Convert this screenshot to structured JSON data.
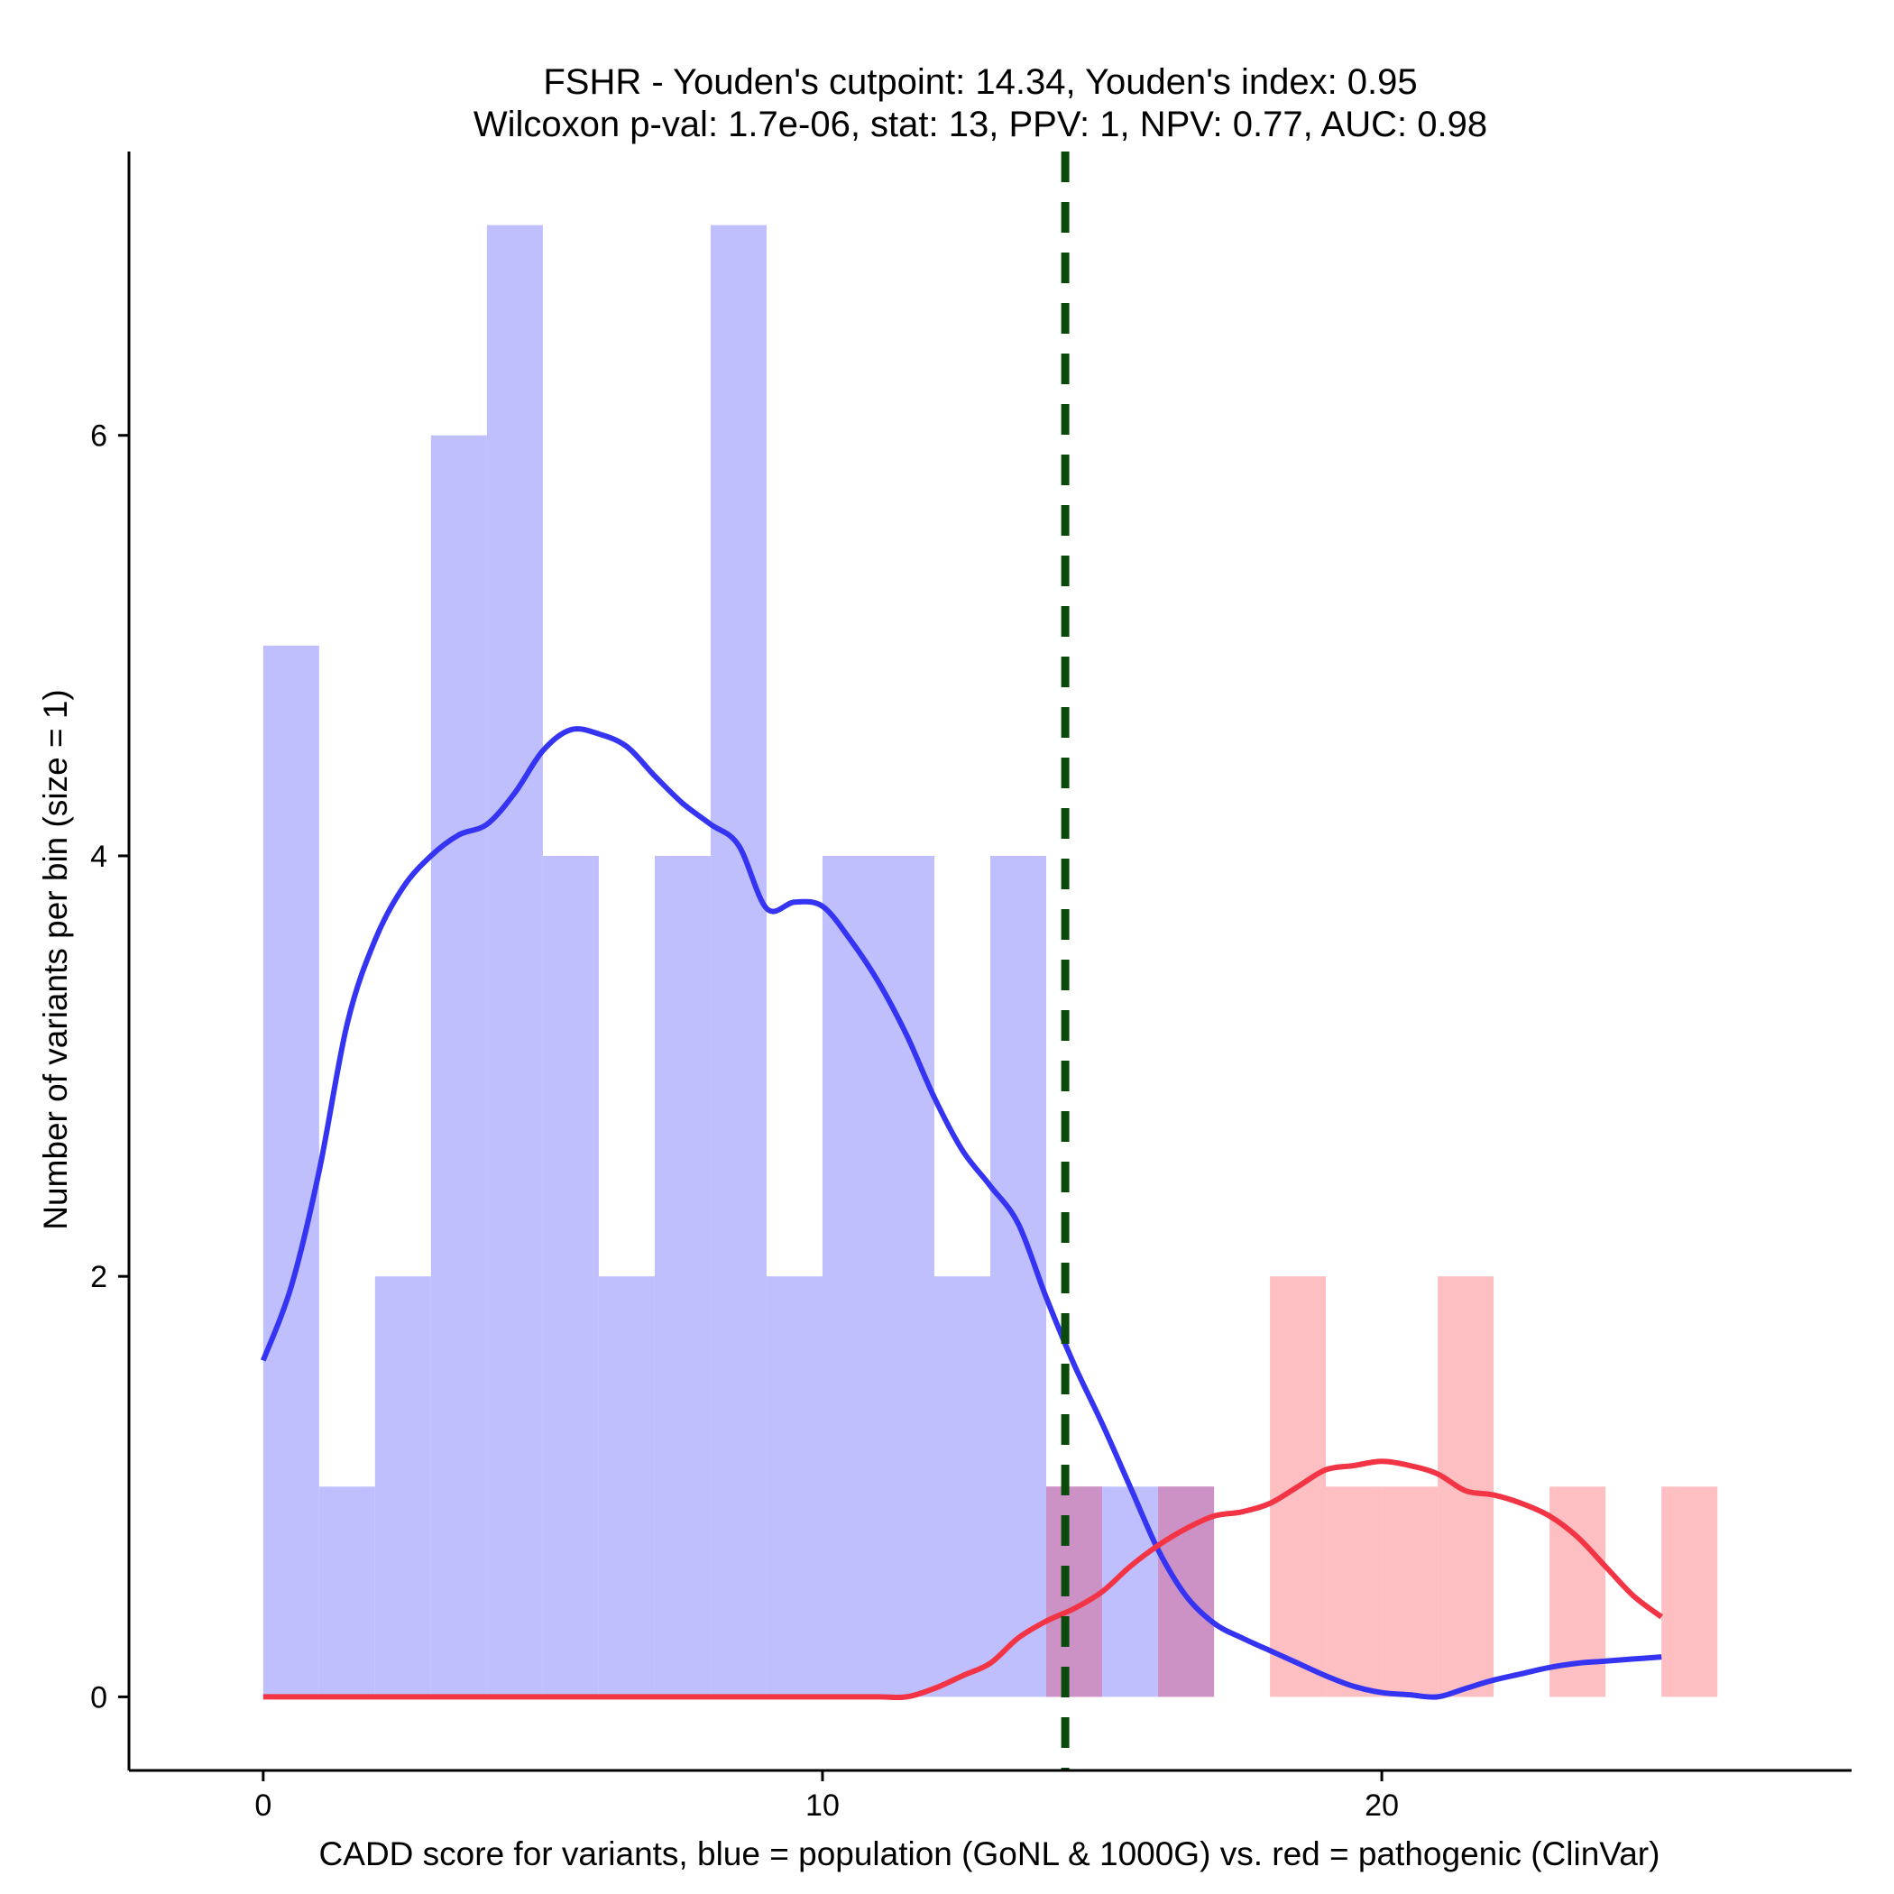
{
  "chart_data": {
    "type": "histogram",
    "title_lines": [
      "FSHR - Youden's cutpoint: 14.34, Youden's index: 0.95",
      "Wilcoxon p-val: 1.7e-06, stat: 13, PPV: 1, NPV: 0.77, AUC: 0.98"
    ],
    "xlabel": "CADD score for variants, blue = population (GoNL & 1000G) vs. red = pathogenic (ClinVar)",
    "ylabel": "Number of variants per bin (size = 1)",
    "xlim": [
      -2.4,
      28.4
    ],
    "ylim": [
      -0.35,
      7.35
    ],
    "x_ticks": [
      0,
      10,
      20
    ],
    "y_ticks": [
      0,
      2,
      4,
      6
    ],
    "bin_width": 1,
    "cutpoint": 14.34,
    "colors": {
      "population_fill": "#bfbffd",
      "pathogenic_fill": "#fdbfc2",
      "overlap_fill": "#cc92c6",
      "population_line": "#3434f2",
      "pathogenic_line": "#f23444",
      "cutpoint_line": "#0a4a0a"
    },
    "series": [
      {
        "name": "population (GoNL & 1000G)",
        "bin_starts": [
          0,
          1,
          2,
          3,
          4,
          5,
          6,
          7,
          8,
          9,
          10,
          11,
          12,
          13,
          14,
          15,
          16
        ],
        "counts": [
          5,
          1,
          2,
          6,
          7,
          4,
          2,
          4,
          7,
          2,
          4,
          4,
          2,
          4,
          1,
          1,
          1
        ]
      },
      {
        "name": "pathogenic (ClinVar)",
        "bin_starts": [
          14,
          16,
          18,
          19,
          20,
          21,
          23,
          25
        ],
        "counts": [
          1,
          1,
          2,
          1,
          1,
          2,
          1,
          1
        ]
      }
    ],
    "density": [
      {
        "name": "population density",
        "x": [
          0,
          0.5,
          1,
          1.5,
          2,
          2.5,
          3,
          3.5,
          4,
          4.5,
          5,
          5.5,
          6,
          6.5,
          7,
          7.5,
          8,
          8.5,
          9,
          9.5,
          10,
          10.5,
          11,
          11.5,
          12,
          12.5,
          13,
          13.5,
          14,
          14.5,
          15,
          15.5,
          16,
          16.5,
          17,
          17.5,
          18,
          18.5,
          19,
          19.5,
          20,
          20.5,
          21,
          21.5,
          22,
          22.5,
          23,
          23.5,
          24,
          24.5,
          25
        ],
        "y": [
          1.6,
          1.95,
          2.5,
          3.2,
          3.6,
          3.85,
          4.0,
          4.1,
          4.15,
          4.3,
          4.5,
          4.6,
          4.58,
          4.52,
          4.38,
          4.25,
          4.15,
          4.05,
          3.75,
          3.78,
          3.76,
          3.6,
          3.4,
          3.15,
          2.85,
          2.6,
          2.43,
          2.25,
          1.9,
          1.58,
          1.3,
          1.0,
          0.7,
          0.48,
          0.35,
          0.28,
          0.22,
          0.16,
          0.1,
          0.05,
          0.02,
          0.01,
          0.0,
          0.04,
          0.08,
          0.11,
          0.14,
          0.16,
          0.17,
          0.18,
          0.19
        ]
      },
      {
        "name": "pathogenic density",
        "x": [
          0,
          1,
          2,
          3,
          4,
          5,
          6,
          7,
          8,
          9,
          10,
          11,
          11.5,
          12,
          12.5,
          13,
          13.5,
          14,
          14.5,
          15,
          15.5,
          16,
          16.5,
          17,
          17.5,
          18,
          18.5,
          19,
          19.5,
          20,
          20.5,
          21,
          21.5,
          22,
          22.5,
          23,
          23.5,
          24,
          24.5,
          25
        ],
        "y": [
          0,
          0,
          0,
          0,
          0,
          0,
          0,
          0,
          0,
          0,
          0,
          0,
          0,
          0.04,
          0.1,
          0.16,
          0.28,
          0.36,
          0.42,
          0.5,
          0.62,
          0.72,
          0.8,
          0.86,
          0.88,
          0.92,
          1.0,
          1.08,
          1.1,
          1.12,
          1.1,
          1.06,
          0.98,
          0.96,
          0.92,
          0.86,
          0.76,
          0.62,
          0.48,
          0.38
        ]
      }
    ]
  }
}
